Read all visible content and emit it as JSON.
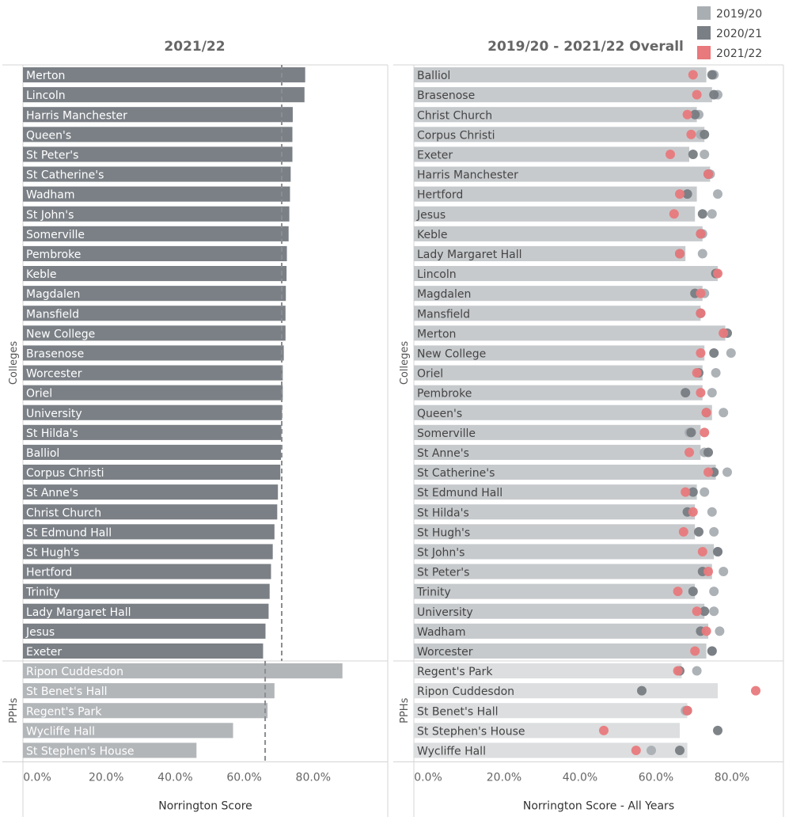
{
  "legend": {
    "items": [
      {
        "label": "2019/20",
        "color": "#a9aeb3"
      },
      {
        "label": "2020/21",
        "color": "#7a7f85"
      },
      {
        "label": "2021/22",
        "color": "#e8797c"
      }
    ]
  },
  "colors": {
    "college_bar": "#7b8086",
    "pph_bar": "#b3b6b9",
    "overall_bar_college": "#c7cacd",
    "overall_bar_pph": "#dcdedf",
    "dot_2019": "#a9aeb3",
    "dot_2020": "#777c82",
    "dot_2021": "#e8797c",
    "ref_line": "#8a8d91"
  },
  "chart_data": [
    {
      "type": "bar",
      "title": "2021/22",
      "xlabel": "Norrington Score",
      "xlim": [
        0,
        100
      ],
      "xticks": [
        "0.0%",
        "20.0%",
        "40.0%",
        "60.0%",
        "80.0%"
      ],
      "groups": [
        {
          "name": "Colleges",
          "reference_line": 75.0,
          "categories": [
            "Merton",
            "Lincoln",
            "Harris Manchester",
            "Queen's",
            "St Peter's",
            "St Catherine's",
            "Wadham",
            "St John's",
            "Somerville",
            "Pembroke",
            "Keble",
            "Magdalen",
            "Mansfield",
            "New College",
            "Brasenose",
            "Worcester",
            "Oriel",
            "University",
            "St Hilda's",
            "Balliol",
            "Corpus Christi",
            "St Anne's",
            "Christ Church",
            "St Edmund Hall",
            "St Hugh's",
            "Hertford",
            "Trinity",
            "Lady Margaret Hall",
            "Jesus",
            "Exeter"
          ],
          "values": [
            81.8,
            81.6,
            78.2,
            78.1,
            78.1,
            77.6,
            77.4,
            77.2,
            77.0,
            76.5,
            76.4,
            76.2,
            76.1,
            76.1,
            75.6,
            75.3,
            75.3,
            75.1,
            74.9,
            74.8,
            74.6,
            73.9,
            73.7,
            72.9,
            72.4,
            71.9,
            71.5,
            71.2,
            70.3,
            69.6
          ]
        },
        {
          "name": "PPHs",
          "reference_line": 70.2,
          "categories": [
            "Ripon Cuddesdon",
            "St Benet's Hall",
            "Regent's Park",
            "Wycliffe Hall",
            "St Stephen's House"
          ],
          "values": [
            92.6,
            72.9,
            70.9,
            60.9,
            50.3
          ]
        }
      ]
    },
    {
      "type": "bar",
      "title": "2019/20 - 2021/22 Overall",
      "xlabel": "Norrington Score - All Years",
      "xlim": [
        0,
        100
      ],
      "xticks": [
        "0.0%",
        "20.0%",
        "40.0%",
        "60.0%",
        "80.0%"
      ],
      "series_names": [
        "2019/20",
        "2020/21",
        "2021/22"
      ],
      "groups": [
        {
          "name": "Colleges",
          "categories": [
            "Balliol",
            "Brasenose",
            "Christ Church",
            "Corpus Christi",
            "Exeter",
            "Harris Manchester",
            "Hertford",
            "Jesus",
            "Keble",
            "Lady Margaret Hall",
            "Lincoln",
            "Magdalen",
            "Mansfield",
            "Merton",
            "New College",
            "Oriel",
            "Pembroke",
            "Queen's",
            "Somerville",
            "St Anne's",
            "St Catherine's",
            "St Edmund Hall",
            "St Hilda's",
            "St Hugh's",
            "St John's",
            "St Peter's",
            "Trinity",
            "University",
            "Wadham",
            "Worcester"
          ],
          "overall": [
            77.0,
            78.5,
            74.5,
            76.5,
            72.5,
            78.0,
            74.5,
            74.0,
            76.0,
            71.5,
            80.0,
            76.0,
            75.5,
            82.0,
            76.5,
            76.0,
            76.0,
            78.5,
            75.5,
            75.5,
            79.5,
            74.5,
            74.0,
            74.0,
            79.0,
            78.5,
            74.0,
            76.5,
            77.5,
            77.0
          ],
          "y2019": [
            79.0,
            80.0,
            75.0,
            75.5,
            76.5,
            78.0,
            80.0,
            78.5,
            76.0,
            76.0,
            79.5,
            76.5,
            75.5,
            81.5,
            83.5,
            79.5,
            78.5,
            81.5,
            72.5,
            76.5,
            82.5,
            76.5,
            78.5,
            79.0,
            80.0,
            81.5,
            79.0,
            79.0,
            80.5,
            78.5
          ],
          "y2020": [
            78.5,
            79.0,
            74.0,
            76.5,
            73.5,
            77.5,
            72.0,
            76.0,
            75.5,
            70.0,
            79.5,
            74.0,
            75.5,
            82.5,
            79.0,
            75.0,
            71.5,
            77.0,
            73.0,
            77.5,
            79.0,
            73.5,
            72.0,
            75.0,
            80.0,
            76.0,
            73.5,
            76.5,
            75.5,
            78.5
          ],
          "y2021": [
            73.5,
            74.5,
            72.0,
            73.0,
            67.5,
            77.5,
            70.0,
            68.5,
            75.5,
            70.0,
            80.0,
            75.5,
            75.5,
            81.5,
            75.5,
            74.5,
            75.5,
            77.0,
            76.5,
            72.5,
            77.5,
            71.5,
            73.5,
            71.0,
            76.0,
            77.5,
            69.5,
            74.5,
            77.0,
            74.0
          ]
        },
        {
          "name": "PPHs",
          "categories": [
            "Regent's Park",
            "Ripon Cuddesdon",
            "St Benet's Hall",
            "St Stephen's House",
            "Wycliffe Hall"
          ],
          "overall": [
            70.5,
            80.0,
            72.0,
            70.0,
            72.0
          ],
          "y2019": [
            74.5,
            null,
            71.5,
            null,
            62.5
          ],
          "y2020": [
            70.0,
            60.0,
            72.0,
            80.0,
            70.0
          ],
          "y2021": [
            69.5,
            90.0,
            72.0,
            50.0,
            58.5
          ]
        }
      ]
    }
  ]
}
